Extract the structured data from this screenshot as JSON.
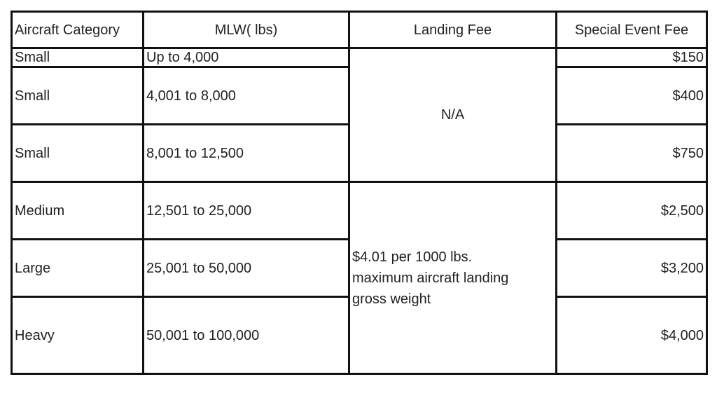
{
  "table": {
    "headers": [
      "Aircraft Category",
      "MLW( lbs)",
      "Landing Fee",
      "Special Event Fee"
    ],
    "rows": [
      {
        "category": "Small",
        "mlw": "Up to 4,000",
        "special_event_fee": "$150"
      },
      {
        "category": "Small",
        "mlw": "4,001 to 8,000",
        "special_event_fee": "$400"
      },
      {
        "category": "Small",
        "mlw": "8,001 to 12,500",
        "special_event_fee": "$750"
      },
      {
        "category": "Medium",
        "mlw": "12,501 to 25,000",
        "special_event_fee": "$2,500"
      },
      {
        "category": "Large",
        "mlw": "25,001 to 50,000",
        "special_event_fee": "$3,200"
      },
      {
        "category": "Heavy",
        "mlw": "50,001 to 100,000",
        "special_event_fee": "$4,000"
      }
    ],
    "landing_fee_small": "N/A",
    "landing_fee_large_lines": [
      "$4.01 per 1000 lbs.",
      "maximum aircraft landing",
      "gross weight"
    ]
  }
}
